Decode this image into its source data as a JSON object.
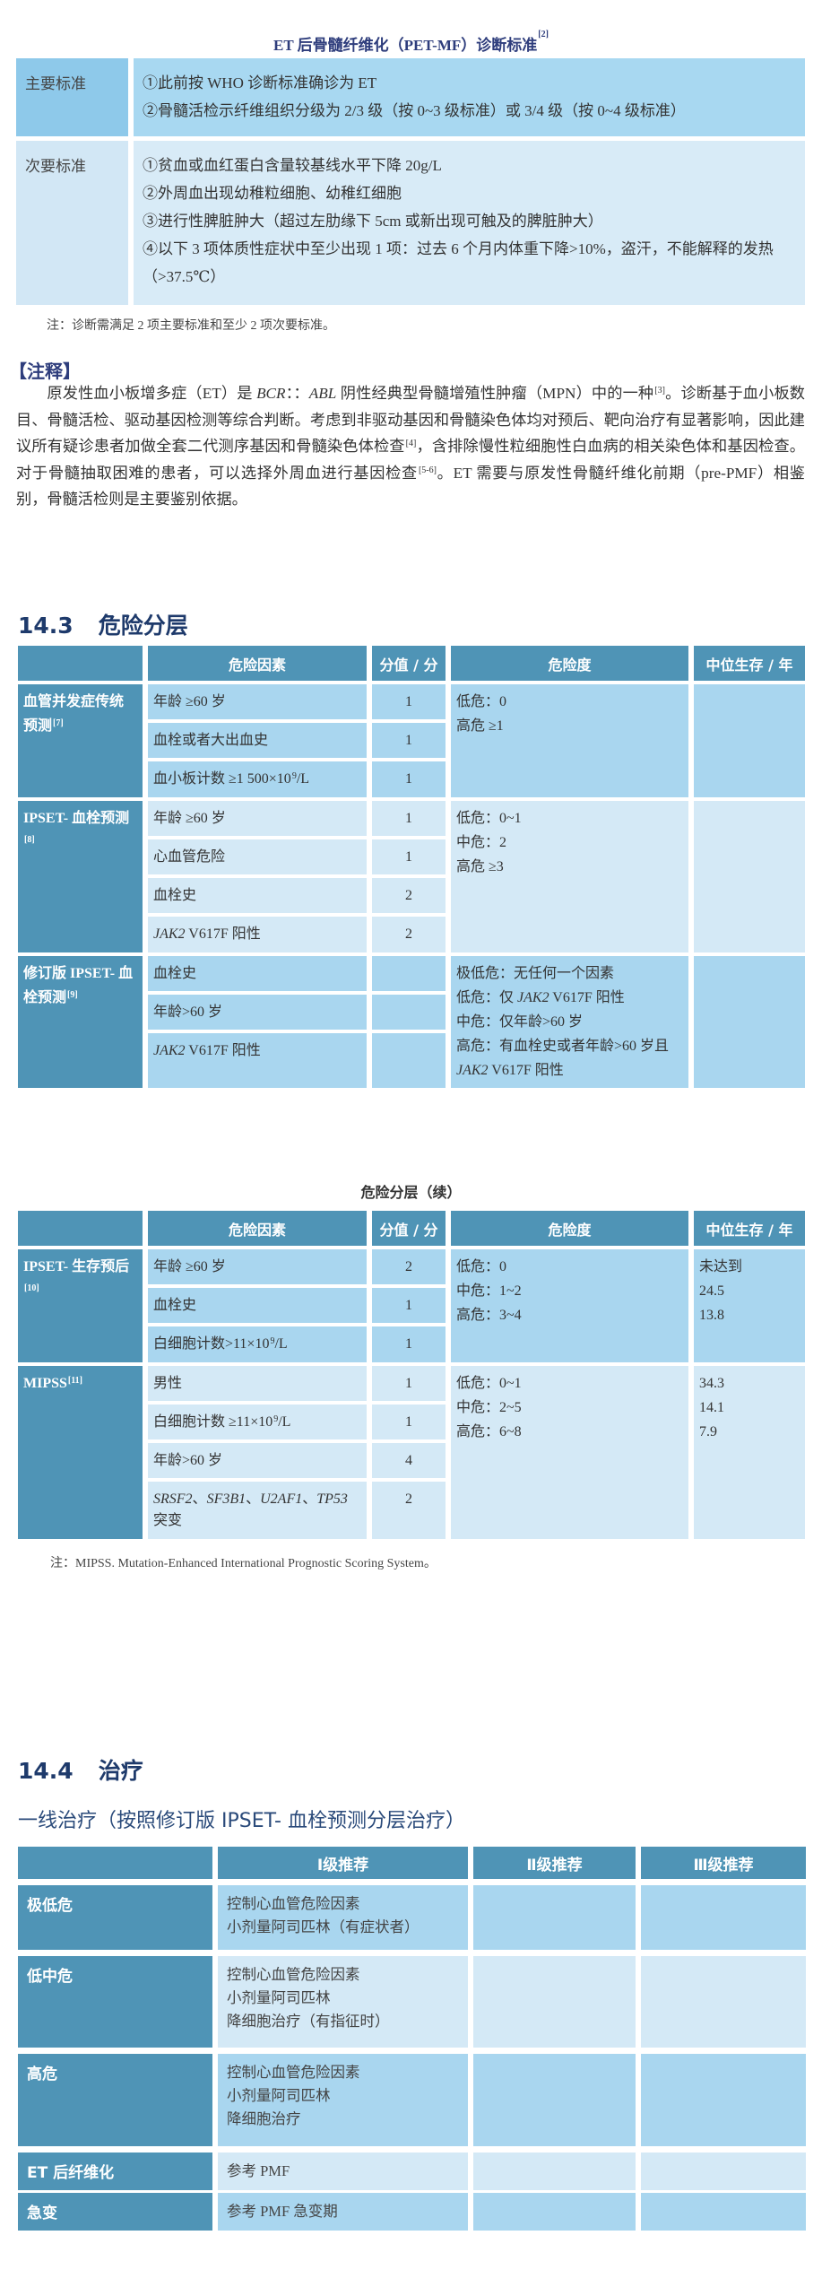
{
  "pet_mf": {
    "title": "ET 后骨髓纤维化（PET-MF）诊断标准",
    "title_ref": "[2]",
    "rows": [
      {
        "label": "主要标准",
        "items": [
          "①此前按 WHO 诊断标准确诊为 ET",
          "②骨髓活检示纤维组织分级为 2/3 级（按 0~3 级标准）或 3/4 级（按 0~4 级标准）"
        ]
      },
      {
        "label": "次要标准",
        "items": [
          "①贫血或血红蛋白含量较基线水平下降 20g/L",
          "②外周血出现幼稚粒细胞、幼稚红细胞",
          "③进行性脾脏肿大（超过左肋缘下 5cm 或新出现可触及的脾脏肿大）",
          "④以下 3 项体质性症状中至少出现 1 项：过去 6 个月内体重下降>10%，盗汗，不能解释的发热（>37.5℃）"
        ]
      }
    ],
    "note": "注：诊断需满足 2 项主要标准和至少 2 项次要标准。"
  },
  "annotation": {
    "heading": "【注释】",
    "paragraph": [
      "原发性血小板增多症（ET）是 ",
      {
        "i": "BCR"
      },
      "：：",
      {
        "i": "ABL"
      },
      " 阴性经典型骨髓增殖性肿瘤（MPN）中的一种",
      {
        "sup": "[3]"
      },
      "。诊断基于血小板数目、骨髓活检、驱动基因检测等综合判断。考虑到非驱动基因和骨髓染色体均对预后、靶向治疗有显著影响，因此建议所有疑诊患者加做全套二代测序基因和骨髓染色体检查",
      {
        "sup": "[4]"
      },
      "，含排除慢性粒细胞性白血病的相关染色体和基因检查。对于骨髓抽取困难的患者，可以选择外周血进行基因检查",
      {
        "sup": "[5-6]"
      },
      "。ET 需要与原发性骨髓纤维化前期（pre-PMF）相鉴别，骨髓活检则是主要鉴别依据。"
    ]
  },
  "risk": {
    "section_number": "14.3",
    "section_title": "危险分层",
    "headers": [
      "",
      "危险因素",
      "分值 / 分",
      "危险度",
      "中位生存 / 年"
    ],
    "table1_groups": [
      {
        "label": [
          "血管并发症传统预测",
          {
            "sup": "[7]"
          }
        ],
        "factors": [
          [
            "年龄 ≥60 岁"
          ],
          [
            "血栓或者大出血史"
          ],
          [
            "血小板计数 ≥1 500×10",
            {
              "sup": "9"
            },
            "/L"
          ]
        ],
        "scores": [
          "1",
          "1",
          "1"
        ],
        "risk": [
          "低危：0",
          "高危 ≥1"
        ],
        "survival": []
      },
      {
        "label": [
          "IPSET- 血栓预测",
          {
            "sup": "[8]"
          }
        ],
        "factors": [
          [
            "年龄 ≥60 岁"
          ],
          [
            "心血管危险"
          ],
          [
            "血栓史"
          ],
          [
            {
              "i": "JAK2"
            },
            " V617F 阳性"
          ]
        ],
        "scores": [
          "1",
          "1",
          "2",
          "2"
        ],
        "risk": [
          "低危：0~1",
          "中危：2",
          "高危 ≥3"
        ],
        "survival": []
      },
      {
        "label": [
          "修订版 IPSET- 血栓预测",
          {
            "sup": "[9]"
          }
        ],
        "factors": [
          [
            "血栓史"
          ],
          [
            "年龄>60 岁"
          ],
          [
            {
              "i": "JAK2"
            },
            " V617F 阳性"
          ]
        ],
        "scores": [
          "",
          "",
          ""
        ],
        "risk": [
          "极低危：无任何一个因素",
          [
            "低危：仅 ",
            {
              "i": "JAK2"
            },
            " V617F 阳性"
          ],
          "中危：仅年龄>60 岁",
          [
            "高危：有血栓史或者年龄>60 岁且 ",
            {
              "i": "JAK2"
            },
            " V617F 阳性"
          ]
        ],
        "survival": []
      }
    ],
    "table2_title": "危险分层（续）",
    "table2_groups": [
      {
        "label": [
          "IPSET- 生存预后",
          {
            "sup": "[10]"
          }
        ],
        "factors": [
          [
            "年龄 ≥60 岁"
          ],
          [
            "血栓史"
          ],
          [
            "白细胞计数>11×10",
            {
              "sup": "9"
            },
            "/L"
          ]
        ],
        "scores": [
          "2",
          "1",
          "1"
        ],
        "risk": [
          "低危：0",
          "中危：1~2",
          "高危：3~4"
        ],
        "survival": [
          "未达到",
          "24.5",
          "13.8"
        ]
      },
      {
        "label": [
          "MIPSS",
          {
            "sup": "[11]"
          }
        ],
        "factors": [
          [
            "男性"
          ],
          [
            "白细胞计数 ≥11×10",
            {
              "sup": "9"
            },
            "/L"
          ],
          [
            "年龄>60 岁"
          ],
          [
            {
              "i": "SRSF2"
            },
            "、",
            {
              "i": "SF3B1"
            },
            "、",
            {
              "i": "U2AF1"
            },
            "、",
            {
              "i": "TP53"
            },
            " 突变"
          ]
        ],
        "scores": [
          "1",
          "1",
          "4",
          "2"
        ],
        "risk": [
          "低危：0~1",
          "中危：2~5",
          "高危：6~8"
        ],
        "survival": [
          "34.3",
          "14.1",
          "7.9"
        ]
      }
    ],
    "table2_note": "注：MIPSS. Mutation-Enhanced International Prognostic Scoring System。"
  },
  "treatment": {
    "section_number": "14.4",
    "section_title": "治疗",
    "subtitle": "一线治疗（按照修订版 IPSET- 血栓预测分层治疗）",
    "headers": [
      "",
      "Ⅰ级推荐",
      "Ⅱ级推荐",
      "Ⅲ级推荐"
    ],
    "rows": [
      {
        "label": "极低危",
        "level1": [
          "控制心血管危险因素",
          "小剂量阿司匹林（有症状者）"
        ],
        "level2": [],
        "level3": []
      },
      {
        "label": "低中危",
        "level1": [
          "控制心血管危险因素",
          "小剂量阿司匹林",
          "降细胞治疗（有指征时）"
        ],
        "level2": [],
        "level3": []
      },
      {
        "label": "高危",
        "level1": [
          "控制心血管危险因素",
          "小剂量阿司匹林",
          "降细胞治疗"
        ],
        "level2": [],
        "level3": []
      },
      {
        "label": "ET 后纤维化",
        "level1": [
          "参考 PMF"
        ],
        "level2": [],
        "level3": []
      },
      {
        "label": "急变",
        "level1": [
          "参考 PMF 急变期"
        ],
        "level2": [],
        "level3": []
      }
    ]
  },
  "colors": {
    "header_bg": "#4f94b6",
    "row_light": "#a9d6ef",
    "row_lighter": "#d4e9f6",
    "title": "#2e3d7c"
  }
}
